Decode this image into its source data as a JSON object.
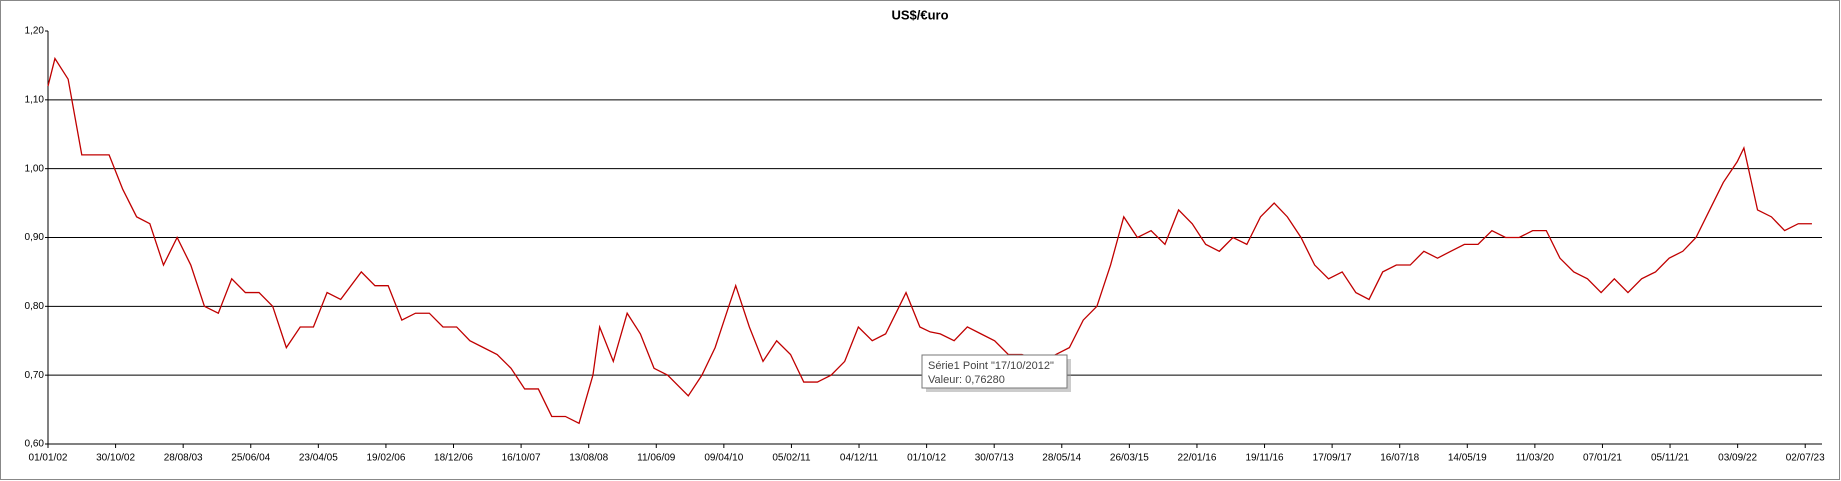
{
  "chart_data": {
    "type": "line",
    "title": "US$/€uro",
    "xlim": [
      "01/01/02",
      "15/09/23"
    ],
    "xticks": [
      "01/01/02",
      "30/10/02",
      "28/08/03",
      "25/06/04",
      "23/04/05",
      "19/02/06",
      "18/12/06",
      "16/10/07",
      "13/08/08",
      "11/06/09",
      "09/04/10",
      "05/02/11",
      "04/12/11",
      "01/10/12",
      "30/07/13",
      "28/05/14",
      "26/03/15",
      "22/01/16",
      "19/11/16",
      "17/09/17",
      "16/07/18",
      "14/05/19",
      "11/03/20",
      "07/01/21",
      "05/11/21",
      "03/09/22",
      "02/07/23"
    ],
    "ylim": [
      0.6,
      1.2
    ],
    "yticks": [
      {
        "value": 0.6,
        "label": "0,60"
      },
      {
        "value": 0.7,
        "label": "0,70"
      },
      {
        "value": 0.8,
        "label": "0,80"
      },
      {
        "value": 0.9,
        "label": "0,90"
      },
      {
        "value": 1.0,
        "label": "1,00"
      },
      {
        "value": 1.1,
        "label": "1,10"
      },
      {
        "value": 1.2,
        "label": "1,20"
      }
    ],
    "grid": true,
    "series": [
      {
        "name": "Série1",
        "color": "#c00000",
        "x": [
          "01/01/02",
          "01/02/02",
          "01/04/02",
          "01/06/02",
          "01/08/02",
          "01/10/02",
          "01/12/02",
          "01/02/03",
          "01/04/03",
          "01/06/03",
          "01/08/03",
          "01/10/03",
          "01/12/03",
          "01/02/04",
          "01/04/04",
          "01/06/04",
          "01/08/04",
          "01/10/04",
          "01/12/04",
          "01/02/05",
          "01/04/05",
          "01/06/05",
          "01/08/05",
          "01/11/05",
          "01/01/06",
          "01/03/06",
          "01/05/06",
          "01/07/06",
          "01/09/06",
          "01/11/06",
          "01/01/07",
          "01/03/07",
          "01/05/07",
          "01/07/07",
          "01/09/07",
          "01/11/07",
          "01/01/08",
          "01/03/08",
          "01/05/08",
          "01/07/08",
          "01/09/08",
          "01/10/08",
          "01/12/08",
          "01/02/09",
          "01/04/09",
          "01/06/09",
          "01/08/09",
          "01/11/09",
          "01/01/10",
          "01/03/10",
          "01/05/10",
          "01/06/10",
          "01/08/10",
          "01/10/10",
          "01/12/10",
          "01/02/11",
          "01/04/11",
          "01/06/11",
          "01/08/11",
          "01/10/11",
          "01/12/11",
          "01/02/12",
          "01/04/12",
          "01/06/12",
          "01/07/12",
          "01/09/12",
          "17/10/12",
          "01/12/12",
          "01/02/13",
          "01/04/13",
          "01/06/13",
          "01/08/13",
          "01/10/13",
          "01/12/13",
          "01/03/14",
          "01/05/14",
          "01/07/14",
          "01/09/14",
          "01/11/14",
          "01/01/15",
          "01/03/15",
          "01/05/15",
          "01/07/15",
          "01/09/15",
          "01/11/15",
          "01/01/16",
          "01/03/16",
          "01/05/16",
          "01/07/16",
          "01/09/16",
          "01/11/16",
          "01/01/17",
          "01/03/17",
          "01/05/17",
          "01/07/17",
          "01/09/17",
          "01/11/17",
          "01/01/18",
          "01/03/18",
          "01/05/18",
          "01/07/18",
          "01/09/18",
          "01/11/18",
          "01/01/19",
          "01/03/19",
          "01/05/19",
          "01/07/19",
          "01/09/19",
          "01/11/19",
          "01/01/20",
          "01/03/20",
          "01/05/20",
          "01/07/20",
          "01/09/20",
          "01/11/20",
          "01/01/21",
          "01/03/21",
          "01/05/21",
          "01/07/21",
          "01/09/21",
          "01/11/21",
          "01/01/22",
          "01/03/22",
          "01/05/22",
          "01/07/22",
          "01/09/22",
          "01/10/22",
          "01/12/22",
          "01/02/23",
          "01/04/23",
          "01/06/23",
          "01/08/23"
        ],
        "values": [
          1.12,
          1.16,
          1.13,
          1.02,
          1.02,
          1.02,
          0.97,
          0.93,
          0.92,
          0.86,
          0.9,
          0.86,
          0.8,
          0.79,
          0.84,
          0.82,
          0.82,
          0.8,
          0.74,
          0.77,
          0.77,
          0.82,
          0.81,
          0.85,
          0.83,
          0.83,
          0.78,
          0.79,
          0.79,
          0.77,
          0.77,
          0.75,
          0.74,
          0.73,
          0.71,
          0.68,
          0.68,
          0.64,
          0.64,
          0.63,
          0.7,
          0.77,
          0.72,
          0.79,
          0.76,
          0.71,
          0.7,
          0.67,
          0.7,
          0.74,
          0.8,
          0.83,
          0.77,
          0.72,
          0.75,
          0.73,
          0.69,
          0.69,
          0.7,
          0.72,
          0.77,
          0.75,
          0.76,
          0.8,
          0.82,
          0.77,
          0.7628,
          0.76,
          0.75,
          0.77,
          0.76,
          0.75,
          0.73,
          0.73,
          0.72,
          0.73,
          0.74,
          0.78,
          0.8,
          0.86,
          0.93,
          0.9,
          0.91,
          0.89,
          0.94,
          0.92,
          0.89,
          0.88,
          0.9,
          0.89,
          0.93,
          0.95,
          0.93,
          0.9,
          0.86,
          0.84,
          0.85,
          0.82,
          0.81,
          0.85,
          0.86,
          0.86,
          0.88,
          0.87,
          0.88,
          0.89,
          0.89,
          0.91,
          0.9,
          0.9,
          0.91,
          0.91,
          0.87,
          0.85,
          0.84,
          0.82,
          0.84,
          0.82,
          0.84,
          0.85,
          0.87,
          0.88,
          0.9,
          0.94,
          0.98,
          1.01,
          1.03,
          0.94,
          0.93,
          0.91,
          0.92,
          0.92
        ]
      }
    ],
    "annotations": [
      "Série1 Point \"17/10/2012\"",
      "Valeur: 0,76280"
    ]
  }
}
